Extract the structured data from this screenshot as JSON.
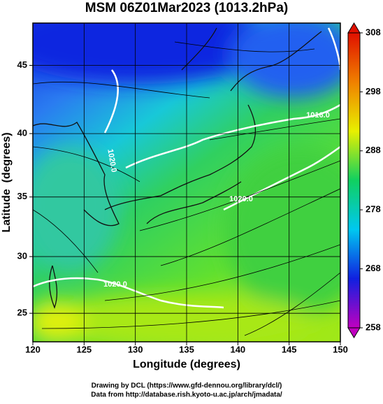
{
  "chart_data": {
    "type": "map",
    "title": "MSM 06Z01Mar2023 (1013.2hPa)",
    "x_label": "Longitude (degrees)",
    "y_label": "Latitude  (degrees)",
    "projection": "mercator",
    "xlim": [
      120,
      150
    ],
    "xticks": [
      120,
      125,
      130,
      135,
      140,
      145,
      150
    ],
    "ylim": [
      22.4,
      47.9
    ],
    "yticks": [
      25,
      30,
      35,
      40,
      45
    ],
    "grid": true,
    "colorbar": {
      "lim": [
        258,
        308
      ],
      "ticks": [
        258,
        268,
        278,
        288,
        298,
        308
      ],
      "colors": [
        "#c000c0",
        "#1020e0",
        "#00c8f0",
        "#10d060",
        "#e8f000",
        "#f08000",
        "#e01000"
      ]
    },
    "contour_labels": [
      "1016.0",
      "1020.0",
      "1020.0",
      "1020.0"
    ],
    "footer": [
      "Drawing by DCL (https://www.gfd-dennou.org/library/dcl/)",
      "Data from http://database.rish.kyoto-u.ac.jp/arch/jmadata/"
    ]
  }
}
